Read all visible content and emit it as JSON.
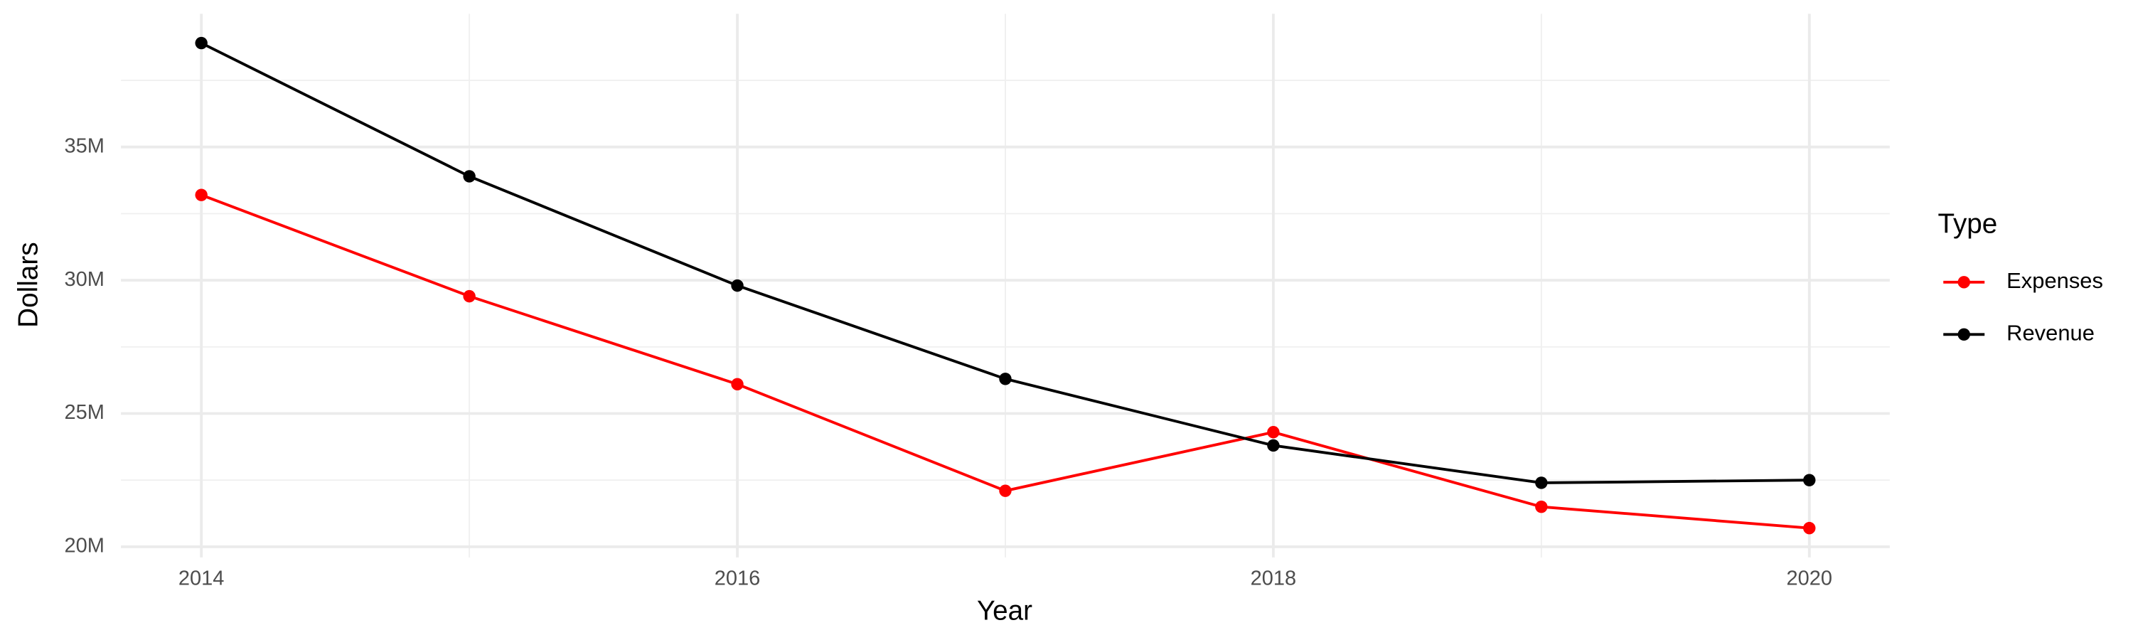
{
  "chart_data": {
    "type": "line",
    "x_label": "Year",
    "y_label": "Dollars",
    "legend_title": "Type",
    "x": [
      2014,
      2015,
      2016,
      2017,
      2018,
      2019,
      2020
    ],
    "series": [
      {
        "name": "Expenses",
        "color": "#ff0000",
        "values": [
          33200000,
          29400000,
          26100000,
          22100000,
          24300000,
          21500000,
          20700000
        ]
      },
      {
        "name": "Revenue",
        "color": "#000000",
        "values": [
          38900000,
          33900000,
          29800000,
          26300000,
          23800000,
          22400000,
          22500000
        ]
      }
    ],
    "xlim": [
      2013.7,
      2020.3
    ],
    "xticks": [
      2014,
      2016,
      2018,
      2020
    ],
    "ylim": [
      19600000,
      40000000
    ],
    "yticks": [
      {
        "value": 20000000,
        "label": "20M"
      },
      {
        "value": 25000000,
        "label": "25M"
      },
      {
        "value": 30000000,
        "label": "30M"
      },
      {
        "value": 35000000,
        "label": "35M"
      }
    ],
    "grid": true,
    "legend_position": "right"
  }
}
